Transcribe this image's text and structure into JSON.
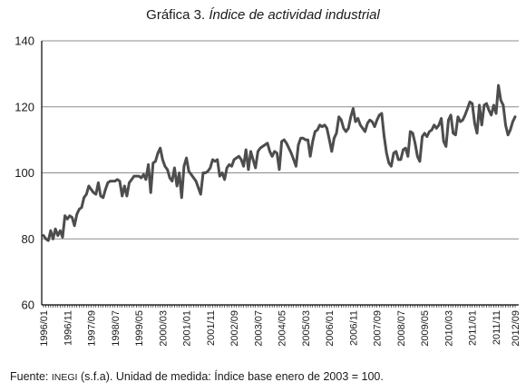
{
  "title": {
    "prefix": "Gráfica 3.",
    "main": "Índice de actividad industrial"
  },
  "source": {
    "label": "Fuente:",
    "org": "INEGI",
    "rest": "(s.f.a). Unidad de medida: Índice base enero de 2003 = 100."
  },
  "colors": {
    "line": "#4d4d4d",
    "grid": "#8c8c8c",
    "axis": "#000000"
  },
  "chart_data": {
    "type": "line",
    "title": "Índice de actividad industrial",
    "xlabel": "",
    "ylabel": "",
    "ylim": [
      60,
      140
    ],
    "yticks": [
      60,
      80,
      100,
      120,
      140
    ],
    "grid": true,
    "xtick_labels": [
      "1996/01",
      "1996/11",
      "1997/09",
      "1998/07",
      "1999/05",
      "2000/03",
      "2001/01",
      "2001/11",
      "2002/09",
      "2003/07",
      "2004/05",
      "2005/03",
      "2006/01",
      "2006/11",
      "2007/09",
      "2008/07",
      "2009/05",
      "2010/03",
      "2011/01",
      "2011/11",
      "2012/09"
    ],
    "series": [
      {
        "values": [
          81.0,
          80.0,
          79.5,
          82.5,
          80.0,
          83.0,
          81.0,
          82.5,
          80.5,
          87.0,
          86.0,
          87.0,
          86.5,
          84.0,
          87.5,
          89.0,
          89.5,
          92.5,
          93.5,
          96.0,
          95.0,
          94.0,
          93.5,
          97.0,
          93.0,
          92.5,
          95.0,
          97.0,
          97.5,
          97.5,
          97.5,
          98.0,
          97.5,
          93.0,
          96.0,
          93.0,
          97.0,
          98.0,
          99.0,
          99.0,
          99.0,
          98.5,
          99.5,
          98.0,
          102.5,
          94.0,
          103.0,
          103.5,
          106.0,
          107.5,
          104.0,
          102.0,
          101.0,
          98.5,
          97.5,
          101.5,
          96.0,
          100.0,
          92.5,
          102.0,
          104.5,
          100.5,
          99.5,
          98.5,
          97.5,
          95.5,
          93.5,
          100.0,
          100.0,
          100.5,
          101.5,
          104.0,
          103.5,
          104.0,
          99.0,
          100.0,
          98.0,
          101.5,
          102.5,
          102.0,
          104.0,
          104.5,
          105.0,
          104.0,
          102.0,
          107.0,
          101.0,
          106.5,
          104.0,
          101.5,
          106.5,
          107.5,
          108.0,
          108.5,
          109.0,
          106.5,
          105.0,
          106.5,
          106.0,
          101.0,
          109.5,
          110.0,
          109.0,
          107.5,
          106.0,
          104.0,
          102.0,
          108.5,
          110.5,
          110.5,
          110.0,
          110.0,
          105.0,
          109.5,
          112.5,
          113.0,
          114.5,
          114.0,
          114.5,
          113.5,
          110.0,
          106.5,
          110.5,
          112.0,
          117.0,
          116.0,
          113.5,
          112.5,
          113.5,
          117.0,
          119.5,
          115.5,
          116.5,
          114.5,
          113.5,
          112.5,
          115.0,
          116.0,
          115.5,
          114.0,
          116.0,
          117.5,
          118.0,
          111.0,
          106.0,
          103.0,
          102.0,
          106.0,
          106.5,
          104.0,
          104.0,
          107.0,
          107.5,
          105.0,
          112.5,
          112.0,
          109.0,
          105.0,
          103.5,
          111.0,
          112.0,
          111.0,
          112.5,
          113.0,
          114.5,
          113.5,
          114.5,
          116.5,
          109.5,
          108.0,
          116.0,
          117.5,
          112.0,
          111.5,
          117.0,
          115.5,
          116.0,
          117.5,
          119.5,
          121.5,
          121.0,
          115.0,
          112.0,
          120.5,
          114.5,
          120.5,
          121.0,
          119.0,
          117.5,
          120.5,
          118.0,
          126.5,
          122.0,
          120.5,
          114.5,
          111.5,
          113.0,
          115.5,
          117.0
        ]
      }
    ]
  }
}
